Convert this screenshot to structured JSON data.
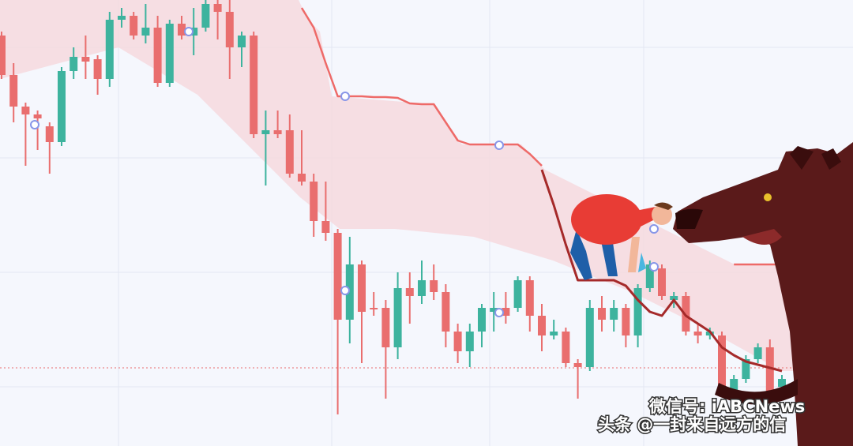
{
  "chart_data": {
    "type": "candlestick",
    "categories": [
      null,
      null,
      null,
      null,
      null,
      null,
      null,
      null,
      null,
      null,
      null,
      null,
      null,
      null,
      null,
      null,
      null,
      null,
      null,
      null,
      null,
      null,
      null,
      null,
      null,
      null,
      null,
      null,
      null,
      null,
      null,
      null,
      null,
      null,
      null,
      null,
      null,
      null,
      null,
      null,
      null,
      null,
      null,
      null,
      null,
      null,
      null,
      null,
      null,
      null,
      null,
      null,
      null,
      null,
      null,
      null,
      null,
      null,
      null,
      null,
      null,
      null,
      null,
      null,
      null,
      null
    ],
    "open": [
      555,
      505,
      465,
      455,
      440,
      420,
      510,
      528,
      525,
      500,
      575,
      580,
      555,
      565,
      495,
      570,
      555,
      565,
      595,
      585,
      540,
      555,
      430,
      435,
      435,
      380,
      370,
      320,
      305,
      195,
      265,
      210,
      210,
      160,
      235,
      225,
      245,
      230,
      180,
      155,
      180,
      205,
      210,
      210,
      245,
      200,
      175,
      180,
      140,
      135,
      210,
      195,
      210,
      175,
      235,
      260,
      220,
      225,
      180,
      175,
      175,
      105,
      120,
      145,
      160,
      110
    ],
    "close": [
      505,
      465,
      455,
      450,
      420,
      510,
      528,
      522,
      500,
      575,
      580,
      555,
      565,
      495,
      570,
      555,
      565,
      595,
      585,
      540,
      555,
      430,
      435,
      430,
      380,
      370,
      320,
      305,
      195,
      265,
      205,
      208,
      160,
      235,
      225,
      245,
      230,
      180,
      155,
      180,
      210,
      210,
      200,
      245,
      200,
      175,
      180,
      140,
      135,
      210,
      195,
      210,
      175,
      235,
      265,
      225,
      225,
      180,
      175,
      180,
      105,
      120,
      145,
      160,
      105,
      120
    ],
    "high": [
      560,
      520,
      470,
      460,
      445,
      515,
      540,
      555,
      530,
      585,
      590,
      585,
      595,
      580,
      575,
      580,
      590,
      600,
      600,
      600,
      560,
      560,
      460,
      460,
      455,
      435,
      380,
      370,
      310,
      300,
      270,
      230,
      220,
      255,
      255,
      270,
      265,
      240,
      190,
      190,
      215,
      230,
      230,
      250,
      250,
      215,
      195,
      185,
      145,
      220,
      225,
      220,
      215,
      240,
      270,
      265,
      230,
      230,
      190,
      185,
      180,
      125,
      150,
      165,
      170,
      125
    ],
    "low": [
      500,
      445,
      390,
      410,
      380,
      415,
      500,
      500,
      480,
      490,
      565,
      550,
      545,
      490,
      490,
      550,
      530,
      560,
      550,
      500,
      515,
      425,
      365,
      425,
      375,
      365,
      300,
      295,
      75,
      165,
      140,
      200,
      95,
      145,
      190,
      215,
      220,
      160,
      140,
      135,
      160,
      180,
      190,
      205,
      180,
      155,
      170,
      135,
      95,
      130,
      180,
      180,
      160,
      160,
      230,
      220,
      210,
      175,
      165,
      170,
      100,
      100,
      115,
      140,
      100,
      105
    ],
    "up_color": "#3db39e",
    "down_color": "#e96e6e",
    "ylim": [
      35,
      600
    ],
    "series": [
      {
        "color": "#ee6a68",
        "values": [
          null,
          null,
          null,
          null,
          null,
          null,
          null,
          null,
          null,
          null,
          null,
          null,
          null,
          null,
          null,
          null,
          null,
          null,
          null,
          null,
          null,
          null,
          null,
          null,
          null,
          590,
          565,
          520,
          478,
          478,
          478,
          477,
          477,
          476,
          469,
          468,
          468,
          445,
          422,
          417,
          417,
          417,
          417,
          417,
          405,
          390,
          null,
          null,
          null,
          null,
          null,
          null,
          null,
          null,
          null,
          null,
          null,
          null,
          null,
          null,
          null,
          265,
          265,
          265,
          265,
          265
        ]
      },
      {
        "color": "#a52a2a",
        "values": [
          null,
          null,
          null,
          null,
          null,
          null,
          null,
          null,
          null,
          null,
          null,
          null,
          null,
          null,
          null,
          null,
          null,
          null,
          null,
          null,
          null,
          null,
          null,
          null,
          null,
          null,
          null,
          null,
          null,
          null,
          null,
          null,
          null,
          null,
          null,
          null,
          null,
          null,
          null,
          null,
          null,
          null,
          null,
          null,
          null,
          385,
          340,
          290,
          245,
          245,
          245,
          245,
          238,
          220,
          205,
          200,
          220,
          200,
          190,
          180,
          160,
          150,
          142,
          138,
          134,
          130
        ]
      }
    ],
    "reference_line": 134,
    "reference_color": "#e96e6e"
  },
  "watermark": {
    "wechat": "微信号: iABCNews",
    "toutiao": "头条 @一封来自远方的信"
  }
}
